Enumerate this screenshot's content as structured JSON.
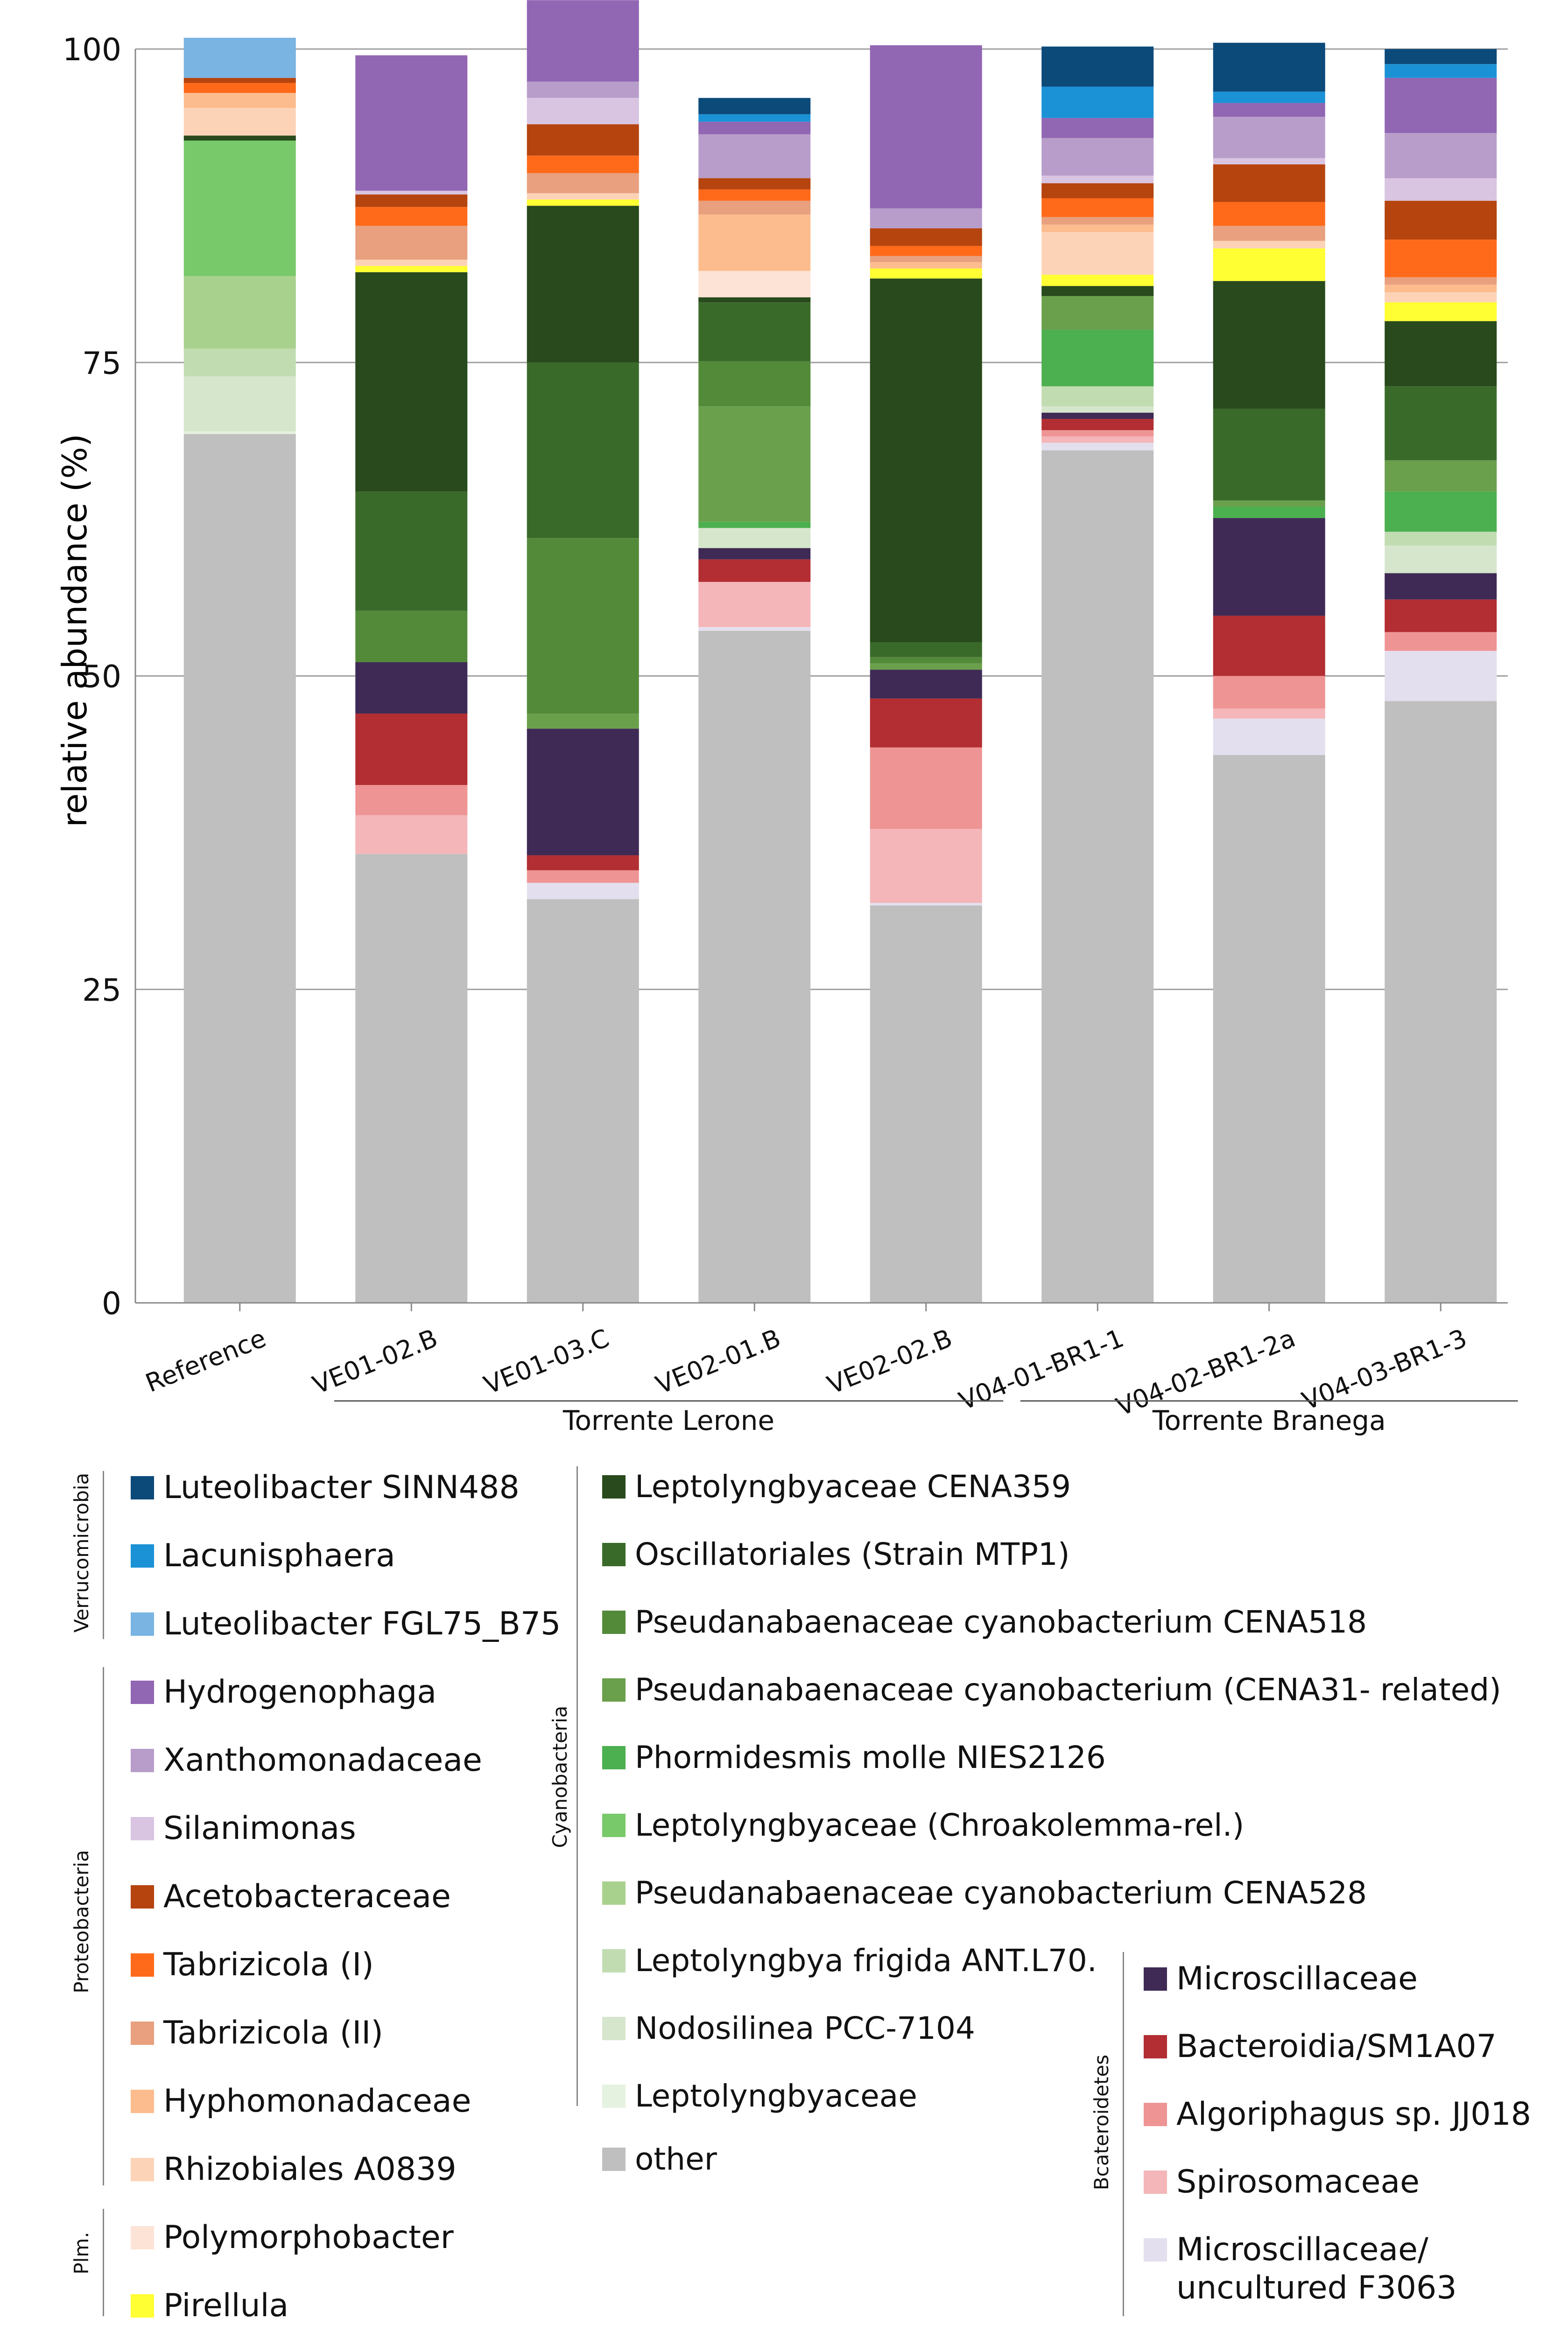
{
  "chart_data": {
    "type": "stacked-bar",
    "ylabel": "relative abundance (%)",
    "ylim": [
      0,
      100
    ],
    "yticks": [
      0,
      25,
      50,
      75,
      100
    ],
    "grid": true,
    "categories": [
      "Reference",
      "VE01-02.B",
      "VE01-03.C",
      "VE02-01.B",
      "VE02-02.B",
      "V04-01-BR1-1",
      "V04-02-BR1-2a",
      "V04-03-BR1-3"
    ],
    "groups": [
      {
        "label": "Torrente Lerone",
        "from": 1,
        "to": 4
      },
      {
        "label": "Torrente Branega",
        "from": 5,
        "to": 7
      }
    ],
    "series": [
      {
        "name": "other",
        "color": "#bfbfbf",
        "values": [
          69.3,
          35.8,
          32.2,
          53.6,
          31.7,
          68.0,
          43.7,
          48.0
        ]
      },
      {
        "name": "Microscillaceae/\nuncultured F3063",
        "color": "#e4dfee",
        "values": [
          0,
          0,
          1.3,
          0.3,
          0.2,
          0.6,
          2.9,
          4.0
        ]
      },
      {
        "name": "Spirosomaceae",
        "color": "#f4b6b8",
        "values": [
          0,
          3.1,
          0,
          3.6,
          5.9,
          0.5,
          0.8,
          0
        ]
      },
      {
        "name": "Algoriphagus sp. JJ018",
        "color": "#ee9494",
        "values": [
          0,
          2.4,
          1.0,
          0,
          6.5,
          0.5,
          2.6,
          1.5
        ]
      },
      {
        "name": "Bacteroidia/SM1A07",
        "color": "#b22e32",
        "values": [
          0,
          5.7,
          1.2,
          1.8,
          3.9,
          0.9,
          4.8,
          2.6
        ]
      },
      {
        "name": "Microscillaceae",
        "color": "#3f2a55",
        "values": [
          0,
          4.1,
          10.1,
          0.9,
          2.3,
          0.5,
          7.8,
          2.1
        ]
      },
      {
        "name": "Leptolyngbyaceae",
        "color": "#e6f2e0",
        "values": [
          0.2,
          0,
          0,
          0,
          0,
          0,
          0,
          0
        ]
      },
      {
        "name": "Nodosilinea PCC-7104",
        "color": "#d6e6cc",
        "values": [
          4.4,
          0,
          0,
          1.6,
          0,
          0.5,
          0,
          2.2
        ]
      },
      {
        "name": "Leptolyngbya frigida ANT.L70.",
        "color": "#c2dcb2",
        "values": [
          2.2,
          0,
          0,
          0,
          0,
          1.6,
          0,
          1.1
        ]
      },
      {
        "name": "Pseudanabaenaceae cyanobacterium CENA528",
        "color": "#a9d18e",
        "values": [
          5.8,
          0,
          0,
          0,
          0,
          0,
          0,
          0
        ]
      },
      {
        "name": "Leptolyngbyaceae (Chroakolemma-rel.)",
        "color": "#78c96a",
        "values": [
          10.8,
          0,
          0,
          0,
          0,
          0,
          0,
          0
        ]
      },
      {
        "name": "Phormidesmis molle  NIES2126",
        "color": "#4caf50",
        "values": [
          0,
          0,
          0,
          0.5,
          0,
          4.5,
          0.9,
          3.2
        ]
      },
      {
        "name": "Pseudanabaenaceae cyanobacterium (CENA31- related)",
        "color": "#6aa04c",
        "values": [
          0,
          0,
          1.2,
          9.2,
          0.5,
          2.7,
          0.5,
          2.5
        ]
      },
      {
        "name": "Pseudanabaenaceae cyanobacterium CENA518",
        "color": "#538a3a",
        "values": [
          0,
          4.1,
          14.0,
          3.6,
          0.5,
          0,
          0,
          0
        ]
      },
      {
        "name": "Oscillatoriales (Strain MTP1)",
        "color": "#3a6a2a",
        "values": [
          0,
          9.5,
          14.0,
          4.7,
          1.2,
          0,
          7.3,
          5.9
        ]
      },
      {
        "name": "Leptolyngbyaceae CENA359",
        "color": "#284a1c",
        "values": [
          0.4,
          17.5,
          12.5,
          0.4,
          29.0,
          0.8,
          10.2,
          5.2
        ]
      },
      {
        "name": "Pirellula",
        "color": "#ffff33",
        "values": [
          0,
          0.5,
          0.5,
          0,
          0.8,
          0.9,
          2.6,
          1.5
        ]
      },
      {
        "name": "Polymorphobacter",
        "color": "#fde3d6",
        "values": [
          0,
          0,
          0,
          2.1,
          0,
          0,
          0,
          0
        ]
      },
      {
        "name": "Rhizobiales A0839",
        "color": "#fdd3b8",
        "values": [
          2.2,
          0.5,
          0.5,
          0,
          0,
          3.4,
          0.6,
          0.8
        ]
      },
      {
        "name": "Hyphomonadaceae",
        "color": "#fdbc8e",
        "values": [
          1.2,
          0,
          0,
          4.5,
          0.5,
          0.6,
          0,
          0.6
        ]
      },
      {
        "name": "Tabrizicola (II)",
        "color": "#e8a07e",
        "values": [
          0,
          2.7,
          1.6,
          1.1,
          0.5,
          0.6,
          1.2,
          0.6
        ]
      },
      {
        "name": "Tabrizicola (I)",
        "color": "#ff6a1a",
        "values": [
          0.8,
          1.5,
          1.4,
          0.9,
          0.8,
          1.5,
          1.9,
          3.0
        ]
      },
      {
        "name": "Acetobacteraceae",
        "color": "#b5440f",
        "values": [
          0.4,
          1.0,
          2.5,
          0.9,
          1.4,
          1.2,
          3.0,
          3.1
        ]
      },
      {
        "name": "Silanimonas",
        "color": "#d9c4e2",
        "values": [
          0,
          0.3,
          2.1,
          0,
          0,
          0.6,
          0.5,
          1.8
        ]
      },
      {
        "name": "Xanthomonadaceae",
        "color": "#b89dca",
        "values": [
          0,
          0,
          1.3,
          3.5,
          1.6,
          3.0,
          3.3,
          3.6
        ]
      },
      {
        "name": "Hydrogenophaga",
        "color": "#9166b3",
        "values": [
          0,
          10.8,
          6.5,
          1.0,
          13.0,
          1.6,
          1.1,
          4.4
        ]
      },
      {
        "name": "Luteolibacter FGL75_B75",
        "color": "#79b4e2",
        "values": [
          3.2,
          0,
          0,
          0,
          0,
          0,
          0,
          0
        ]
      },
      {
        "name": "Lacunisphaera",
        "color": "#1b92d6",
        "values": [
          0,
          0,
          0,
          0.6,
          0,
          2.5,
          0.9,
          1.1
        ]
      },
      {
        "name": "Luteolibacter SINN488",
        "color": "#0c4a7a",
        "values": [
          0,
          0,
          0,
          1.3,
          0,
          3.2,
          3.9,
          1.2
        ]
      }
    ]
  },
  "legend": {
    "phyla": {
      "verrucomicrobia": "Verrucomicrobia",
      "proteobacteria": "Proteobacteria",
      "plm": "Plm.",
      "cyanobacteria": "Cyanobacteria",
      "bcateroidetes": "Bcateroidetes"
    },
    "col1": [
      {
        "name": "Luteolibacter SINN488",
        "color": "#0c4a7a"
      },
      {
        "name": "Lacunisphaera",
        "color": "#1b92d6"
      },
      {
        "name": "Luteolibacter FGL75_B75",
        "color": "#79b4e2"
      },
      {
        "name": "Hydrogenophaga",
        "color": "#9166b3"
      },
      {
        "name": "Xanthomonadaceae",
        "color": "#b89dca"
      },
      {
        "name": "Silanimonas",
        "color": "#d9c4e2"
      },
      {
        "name": "Acetobacteraceae",
        "color": "#b5440f"
      },
      {
        "name": "Tabrizicola (I)",
        "color": "#ff6a1a"
      },
      {
        "name": "Tabrizicola (II)",
        "color": "#e8a07e"
      },
      {
        "name": "Hyphomonadaceae",
        "color": "#fdbc8e"
      },
      {
        "name": "Rhizobiales A0839",
        "color": "#fdd3b8"
      },
      {
        "name": "Polymorphobacter",
        "color": "#fde3d6"
      },
      {
        "name": "Pirellula",
        "color": "#ffff33"
      }
    ],
    "col2": [
      {
        "name": "Leptolyngbyaceae CENA359",
        "color": "#284a1c"
      },
      {
        "name": "Oscillatoriales (Strain MTP1)",
        "color": "#3a6a2a"
      },
      {
        "name": "Pseudanabaenaceae cyanobacterium CENA518",
        "color": "#538a3a"
      },
      {
        "name": "Pseudanabaenaceae cyanobacterium (CENA31- related)",
        "color": "#6aa04c"
      },
      {
        "name": "Phormidesmis molle  NIES2126",
        "color": "#4caf50"
      },
      {
        "name": "Leptolyngbyaceae (Chroakolemma-rel.)",
        "color": "#78c96a"
      },
      {
        "name": "Pseudanabaenaceae cyanobacterium CENA528",
        "color": "#a9d18e"
      },
      {
        "name": "Leptolyngbya frigida ANT.L70.",
        "color": "#c2dcb2"
      },
      {
        "name": "Nodosilinea PCC-7104",
        "color": "#d6e6cc"
      },
      {
        "name": "Leptolyngbyaceae",
        "color": "#e6f2e0"
      },
      {
        "name": "other",
        "color": "#bfbfbf"
      }
    ],
    "col3": [
      {
        "name": "Microscillaceae",
        "color": "#3f2a55"
      },
      {
        "name": "Bacteroidia/SM1A07",
        "color": "#b22e32"
      },
      {
        "name": "Algoriphagus sp. JJ018",
        "color": "#ee9494"
      },
      {
        "name": "Spirosomaceae",
        "color": "#f4b6b8"
      },
      {
        "name": "Microscillaceae/\nuncultured F3063",
        "color": "#e4dfee"
      }
    ]
  }
}
